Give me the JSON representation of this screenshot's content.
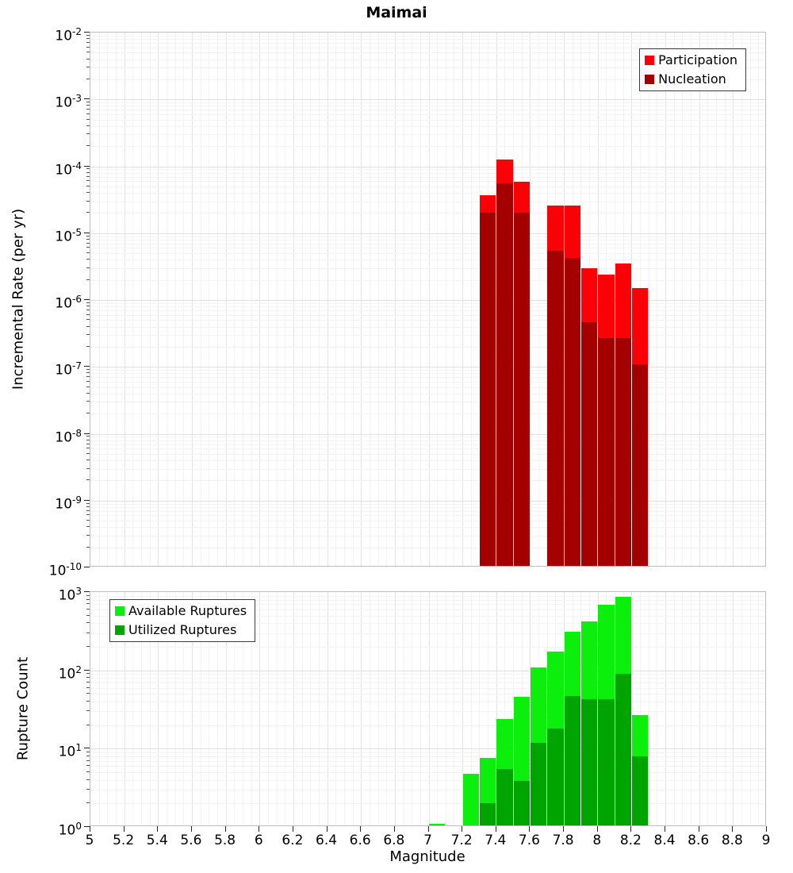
{
  "title": "Maimai",
  "chart_data": [
    {
      "type": "bar",
      "panel": "top",
      "title": "Maimai",
      "ylabel": "Incremental Rate (per yr)",
      "yscale": "log",
      "ylim": [
        1e-10,
        0.01
      ],
      "xlim": [
        5,
        9
      ],
      "grid": true,
      "bin_width": 0.1,
      "series_render": "overlay",
      "legend_position": "top-right",
      "y_tick_exponents": [
        -2,
        -3,
        -4,
        -5,
        -6,
        -7,
        -8,
        -9,
        -10
      ],
      "x_bin_starts": [
        7.3,
        7.4,
        7.5,
        7.7,
        7.8,
        7.9,
        8.0,
        8.1,
        8.2
      ],
      "series": [
        {
          "name": "Participation",
          "color": "#fb0007",
          "values": [
            3.7e-05,
            0.000125,
            5.8e-05,
            2.6e-05,
            2.6e-05,
            3e-06,
            2.4e-06,
            3.5e-06,
            1.5e-06
          ]
        },
        {
          "name": "Nucleation",
          "color": "#a40000",
          "values": [
            2e-05,
            5.6e-05,
            2e-05,
            5.5e-06,
            4.2e-06,
            4.7e-07,
            2.7e-07,
            2.7e-07,
            1.1e-07
          ]
        }
      ]
    },
    {
      "type": "bar",
      "panel": "bottom",
      "ylabel": "Rupture Count",
      "xlabel": "Magnitude",
      "yscale": "log",
      "ylim": [
        1,
        1000
      ],
      "xlim": [
        5,
        9
      ],
      "grid": true,
      "bin_width": 0.1,
      "series_render": "overlay",
      "legend_position": "top-left",
      "y_tick_exponents": [
        3,
        2,
        1,
        0
      ],
      "x_tick_step": 0.2,
      "x_tick_labels": [
        "5",
        "5.2",
        "5.4",
        "5.6",
        "5.8",
        "6",
        "6.2",
        "6.4",
        "6.6",
        "6.8",
        "7",
        "7.2",
        "7.4",
        "7.6",
        "7.8",
        "8",
        "8.2",
        "8.4",
        "8.6",
        "8.8",
        "9"
      ],
      "x_bin_starts": [
        7.0,
        7.2,
        7.3,
        7.4,
        7.5,
        7.6,
        7.7,
        7.8,
        7.9,
        8.0,
        8.1,
        8.2
      ],
      "series": [
        {
          "name": "Available Ruptures",
          "color": "#0cef0c",
          "values": [
            1.1,
            4.8,
            7.7,
            24,
            46,
            110,
            175,
            310,
            420,
            690,
            870,
            27
          ]
        },
        {
          "name": "Utilized Ruptures",
          "color": "#00a400",
          "values": [
            0,
            0,
            2,
            5.5,
            3.9,
            12,
            18,
            47,
            43,
            43,
            90,
            8
          ]
        }
      ]
    }
  ]
}
